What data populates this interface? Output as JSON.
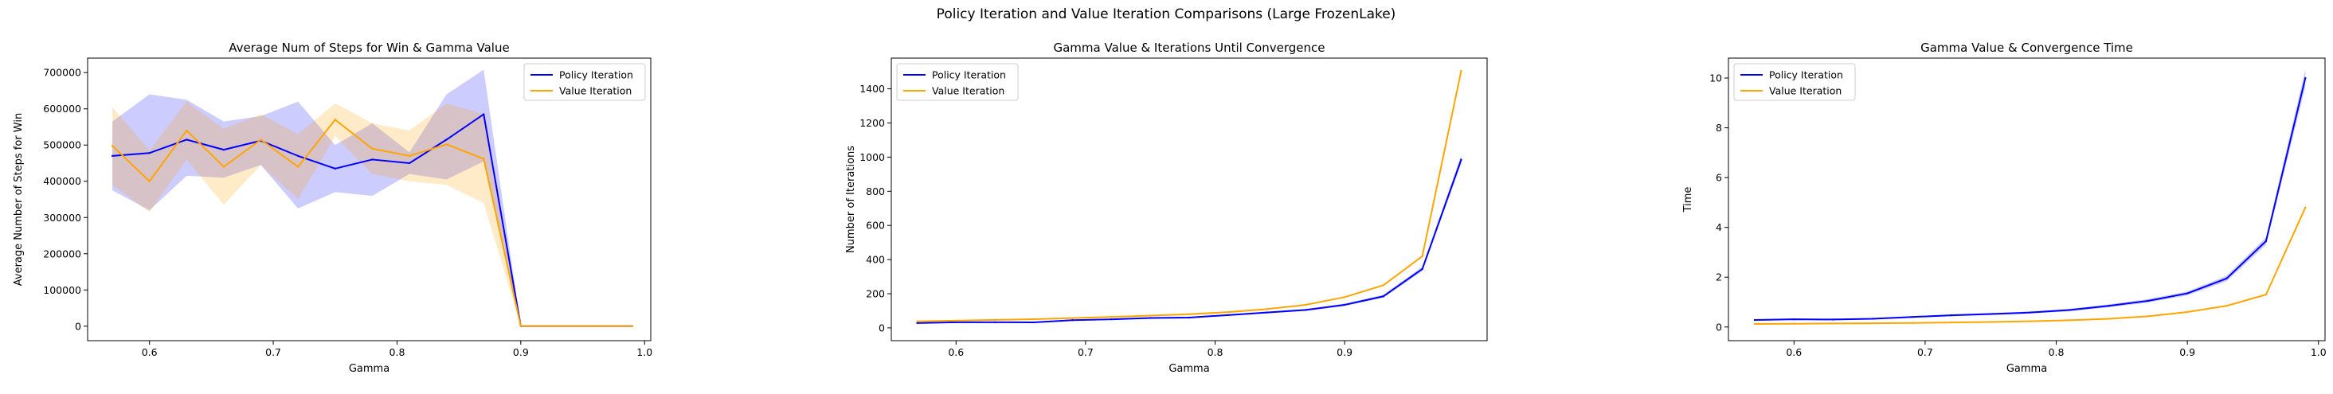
{
  "figure": {
    "title": "Policy Iteration and Value Iteration Comparisons (Large FrozenLake)"
  },
  "colors": {
    "policy": "#0000ff",
    "value": "#ffa500",
    "policy_band": "rgba(0,0,255,0.20)",
    "value_band": "rgba(255,165,0,0.22)"
  },
  "chart_data": [
    {
      "type": "line",
      "title": "Average Num of Steps for Win & Gamma Value",
      "xlabel": "Gamma",
      "ylabel": "Average Number of Steps for Win",
      "xlim": [
        0.55,
        1.005
      ],
      "ylim": [
        -40000,
        740000
      ],
      "xticks": [
        0.6,
        0.7,
        0.8,
        0.9,
        1.0
      ],
      "xtick_labels": [
        "0.6",
        "0.7",
        "0.8",
        "0.9",
        "1.0"
      ],
      "yticks": [
        0,
        100000,
        200000,
        300000,
        400000,
        500000,
        600000,
        700000
      ],
      "ytick_labels": [
        "0",
        "100000",
        "200000",
        "300000",
        "400000",
        "500000",
        "600000",
        "700000"
      ],
      "legend_position": "upper right",
      "x": [
        0.57,
        0.6,
        0.63,
        0.66,
        0.69,
        0.72,
        0.75,
        0.78,
        0.81,
        0.84,
        0.87,
        0.9,
        0.93,
        0.96,
        0.99
      ],
      "series": [
        {
          "name": "Policy Iteration",
          "values": [
            470000,
            478000,
            515000,
            487000,
            512000,
            470000,
            435000,
            460000,
            450000,
            515000,
            585000,
            0,
            0,
            0,
            0
          ],
          "lower": [
            375000,
            320000,
            415000,
            410000,
            445000,
            325000,
            370000,
            360000,
            420000,
            405000,
            455000,
            0,
            0,
            0,
            0
          ],
          "upper": [
            565000,
            640000,
            625000,
            565000,
            580000,
            620000,
            500000,
            560000,
            480000,
            640000,
            708000,
            0,
            0,
            0,
            0
          ]
        },
        {
          "name": "Value Iteration",
          "values": [
            498000,
            400000,
            540000,
            440000,
            515000,
            440000,
            570000,
            490000,
            470000,
            502000,
            462000,
            0,
            0,
            0,
            0
          ],
          "lower": [
            390000,
            315000,
            460000,
            335000,
            445000,
            350000,
            525000,
            420000,
            400000,
            390000,
            340000,
            0,
            0,
            0,
            0
          ],
          "upper": [
            605000,
            485000,
            620000,
            545000,
            585000,
            530000,
            615000,
            560000,
            540000,
            615000,
            585000,
            0,
            0,
            0,
            0
          ]
        }
      ]
    },
    {
      "type": "line",
      "title": "Gamma Value & Iterations Until Convergence",
      "xlabel": "Gamma",
      "ylabel": "Number of Iterations",
      "xlim": [
        0.55,
        1.01
      ],
      "ylim": [
        -75,
        1580
      ],
      "xticks": [
        0.6,
        0.7,
        0.8,
        0.9
      ],
      "xtick_labels": [
        "0.6",
        "0.7",
        "0.8",
        "0.9"
      ],
      "yticks": [
        0,
        200,
        400,
        600,
        800,
        1000,
        1200,
        1400
      ],
      "ytick_labels": [
        "0",
        "200",
        "400",
        "600",
        "800",
        "1000",
        "1200",
        "1400"
      ],
      "legend_position": "upper left",
      "x": [
        0.57,
        0.6,
        0.63,
        0.66,
        0.69,
        0.72,
        0.75,
        0.78,
        0.81,
        0.84,
        0.87,
        0.9,
        0.93,
        0.96,
        0.99
      ],
      "series": [
        {
          "name": "Policy Iteration",
          "values": [
            28,
            33,
            33,
            32,
            45,
            50,
            58,
            60,
            75,
            90,
            105,
            135,
            185,
            345,
            985
          ],
          "lower": [
            25,
            30,
            30,
            29,
            41,
            46,
            54,
            56,
            70,
            85,
            99,
            128,
            176,
            332,
            960
          ],
          "upper": [
            31,
            36,
            36,
            35,
            49,
            54,
            62,
            64,
            80,
            95,
            111,
            142,
            194,
            358,
            1010
          ]
        },
        {
          "name": "Value Iteration",
          "values": [
            38,
            42,
            47,
            51,
            57,
            64,
            72,
            80,
            92,
            110,
            135,
            180,
            250,
            420,
            1505
          ]
        }
      ]
    },
    {
      "type": "line",
      "title": "Gamma Value & Convergence Time",
      "xlabel": "Gamma",
      "ylabel": "Time",
      "xlim": [
        0.55,
        1.005
      ],
      "ylim": [
        -0.55,
        10.8
      ],
      "xticks": [
        0.6,
        0.7,
        0.8,
        0.9,
        1.0
      ],
      "xtick_labels": [
        "0.6",
        "0.7",
        "0.8",
        "0.9",
        "1.0"
      ],
      "yticks": [
        0,
        2,
        4,
        6,
        8,
        10
      ],
      "ytick_labels": [
        "0",
        "2",
        "4",
        "6",
        "8",
        "10"
      ],
      "legend_position": "upper left",
      "x": [
        0.57,
        0.6,
        0.63,
        0.66,
        0.69,
        0.72,
        0.75,
        0.78,
        0.81,
        0.84,
        0.87,
        0.9,
        0.93,
        0.96,
        0.99
      ],
      "series": [
        {
          "name": "Policy Iteration",
          "values": [
            0.28,
            0.31,
            0.3,
            0.33,
            0.4,
            0.47,
            0.52,
            0.58,
            0.68,
            0.85,
            1.05,
            1.35,
            1.95,
            3.45,
            10.0
          ],
          "lower": [
            0.25,
            0.28,
            0.27,
            0.3,
            0.37,
            0.43,
            0.48,
            0.54,
            0.63,
            0.79,
            0.98,
            1.27,
            1.84,
            3.3,
            9.65
          ],
          "upper": [
            0.31,
            0.34,
            0.33,
            0.36,
            0.43,
            0.51,
            0.56,
            0.62,
            0.73,
            0.91,
            1.12,
            1.43,
            2.06,
            3.6,
            10.35
          ]
        },
        {
          "name": "Value Iteration",
          "values": [
            0.12,
            0.13,
            0.14,
            0.15,
            0.16,
            0.18,
            0.2,
            0.23,
            0.27,
            0.33,
            0.43,
            0.6,
            0.85,
            1.3,
            4.8
          ]
        }
      ]
    }
  ]
}
